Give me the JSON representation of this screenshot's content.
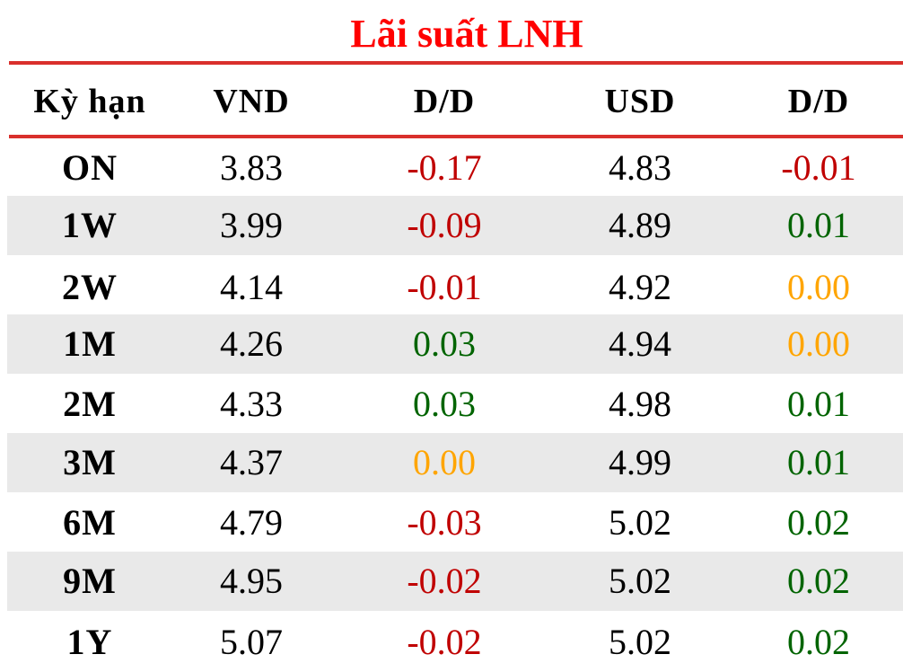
{
  "title": "Lãi suất LNH",
  "colors": {
    "negative": "#c00000",
    "positive": "#006400",
    "zero": "#ffa500",
    "rule": "#d9302c",
    "title": "#ff0000"
  },
  "headers": [
    "Kỳ hạn",
    "VND",
    "D/D",
    "USD",
    "D/D"
  ],
  "rows": [
    {
      "term": "ON",
      "vnd": "3.83",
      "vnd_dd": "-0.17",
      "usd": "4.83",
      "usd_dd": "-0.01"
    },
    {
      "term": "1W",
      "vnd": "3.99",
      "vnd_dd": "-0.09",
      "usd": "4.89",
      "usd_dd": "0.01"
    },
    {
      "term": "2W",
      "vnd": "4.14",
      "vnd_dd": "-0.01",
      "usd": "4.92",
      "usd_dd": "0.00"
    },
    {
      "term": "1M",
      "vnd": "4.26",
      "vnd_dd": "0.03",
      "usd": "4.94",
      "usd_dd": "0.00"
    },
    {
      "term": "2M",
      "vnd": "4.33",
      "vnd_dd": "0.03",
      "usd": "4.98",
      "usd_dd": "0.01"
    },
    {
      "term": "3M",
      "vnd": "4.37",
      "vnd_dd": "0.00",
      "usd": "4.99",
      "usd_dd": "0.01"
    },
    {
      "term": "6M",
      "vnd": "4.79",
      "vnd_dd": "-0.03",
      "usd": "5.02",
      "usd_dd": "0.02"
    },
    {
      "term": "9M",
      "vnd": "4.95",
      "vnd_dd": "-0.02",
      "usd": "5.02",
      "usd_dd": "0.02"
    },
    {
      "term": "1Y",
      "vnd": "5.07",
      "vnd_dd": "-0.02",
      "usd": "5.02",
      "usd_dd": "0.02"
    }
  ]
}
